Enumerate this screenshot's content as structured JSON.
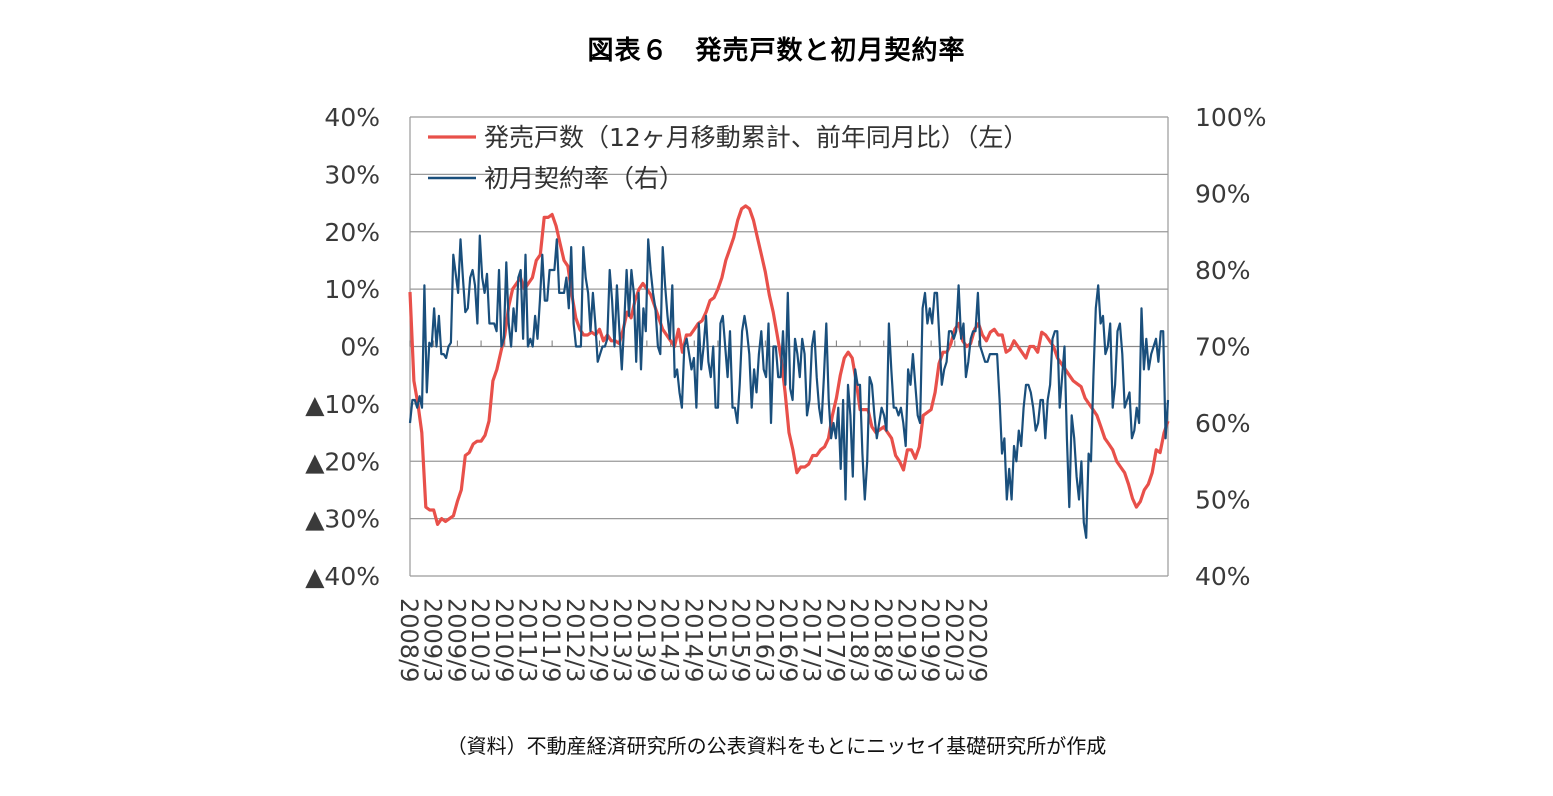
{
  "title": "図表６　発売戸数と初月契約率",
  "source": "（資料）不動産経済研究所の公表資料をもとにニッセイ基礎研究所が作成",
  "chart_data": {
    "type": "line",
    "start": "2008/9",
    "x_tick_labels": [
      "2008/9",
      "2009/3",
      "2009/9",
      "2010/3",
      "2010/9",
      "2011/3",
      "2011/9",
      "2012/3",
      "2012/9",
      "2013/3",
      "2013/9",
      "2014/3",
      "2014/9",
      "2015/3",
      "2015/9",
      "2016/3",
      "2016/9",
      "2017/3",
      "2017/9",
      "2018/3",
      "2018/9",
      "2019/3",
      "2019/9",
      "2020/3",
      "2020/9"
    ],
    "y_left": {
      "min": -40,
      "max": 40,
      "step": 10,
      "tick_labels": [
        "40%",
        "30%",
        "20%",
        "10%",
        "0%",
        "▲10%",
        "▲20%",
        "▲30%",
        "▲40%"
      ]
    },
    "y_right": {
      "min": 40,
      "max": 100,
      "step": 10,
      "tick_labels": [
        "100%",
        "90%",
        "80%",
        "70%",
        "60%",
        "50%",
        "40%"
      ]
    },
    "grid": "horizontal",
    "legend_position": "top-left",
    "series": [
      {
        "name": "発売戸数（12ヶ月移動累計、前年同月比）（左）",
        "axis": "left",
        "color": "#e8504a",
        "values": [
          9.5,
          -6,
          -10,
          -15,
          -28,
          -28.5,
          -28.5,
          -31,
          -30,
          -30.5,
          -30,
          -29.5,
          -27,
          -25,
          -19,
          -18.5,
          -17,
          -16.5,
          -16.5,
          -15.5,
          -13,
          -6,
          -4,
          -1,
          2,
          7,
          10,
          11,
          12,
          10,
          11,
          12,
          15,
          16,
          22.5,
          22.5,
          23,
          21,
          18,
          15,
          14,
          9,
          5,
          3,
          2,
          2,
          2.5,
          2,
          3,
          1,
          2,
          1,
          1,
          0.5,
          3,
          6,
          5,
          8,
          10,
          11,
          10,
          9,
          7,
          5,
          3,
          2,
          1,
          0,
          3,
          -1,
          2,
          2,
          3,
          4,
          4.5,
          6,
          8,
          8.5,
          10,
          12,
          15,
          17,
          19,
          22,
          24,
          24.5,
          24,
          22,
          19,
          16,
          13,
          9,
          6,
          2,
          -2,
          -8,
          -15,
          -18,
          -22,
          -21,
          -21,
          -20.5,
          -19,
          -19,
          -18,
          -17.5,
          -16,
          -12,
          -9,
          -5,
          -2,
          -1,
          -2,
          -6,
          -11,
          -11,
          -11,
          -14,
          -15,
          -14.5,
          -14,
          -15,
          -16,
          -19,
          -20,
          -21.5,
          -18,
          -18,
          -19.5,
          -17.5,
          -12,
          -11.5,
          -11,
          -8,
          -3,
          -1,
          -1,
          0.5,
          3,
          4,
          1,
          0,
          0.5,
          3,
          4,
          2,
          1,
          2.5,
          3,
          2,
          2,
          -1,
          -0.5,
          1,
          0,
          -1,
          -2,
          0,
          0,
          -1,
          2.5,
          2,
          1,
          0,
          -2,
          -3,
          -4,
          -5,
          -6,
          -6.5,
          -7,
          -9,
          -10,
          -11,
          -12,
          -14,
          -16,
          -17,
          -18,
          -20,
          -21,
          -22,
          -24,
          -26.5,
          -28,
          -27,
          -25,
          -24,
          -22,
          -18,
          -18.5,
          -15,
          -13
        ]
      },
      {
        "name": "初月契約率（右）",
        "axis": "right",
        "color": "#1a4f7c",
        "values": [
          60,
          63,
          63,
          62,
          63.5,
          62,
          78,
          64,
          70.5,
          70,
          75,
          70,
          74,
          69,
          69,
          68.5,
          70,
          70.5,
          82,
          79.5,
          77,
          84,
          79,
          74.5,
          75,
          79,
          80,
          78,
          73,
          84.5,
          79,
          77,
          79.5,
          73,
          73,
          73,
          72,
          80,
          70,
          71,
          81,
          73,
          70,
          75,
          72,
          79,
          80,
          71,
          82,
          70,
          71,
          70,
          74,
          71,
          76,
          82,
          76,
          76,
          80,
          80,
          80,
          84,
          77,
          77,
          77,
          79,
          75,
          83,
          73,
          70,
          70,
          70,
          83,
          79,
          77,
          72,
          77,
          73,
          68,
          69,
          70,
          70,
          71,
          80,
          76,
          70,
          78,
          72,
          67,
          73,
          80,
          74,
          80,
          77,
          68,
          77,
          67,
          75,
          72,
          84,
          80,
          77,
          75,
          70,
          69,
          83,
          78,
          74,
          71,
          78,
          66,
          67,
          64,
          62,
          70,
          71,
          69,
          67,
          68.5,
          62,
          73,
          67,
          70,
          74,
          68,
          66,
          70,
          62,
          62,
          73,
          74,
          70,
          66,
          72,
          62,
          62,
          60,
          65,
          72,
          74,
          72,
          69,
          62,
          67,
          64,
          69,
          72,
          67,
          66,
          73,
          60,
          70,
          70,
          66,
          66,
          72,
          65,
          77,
          64.5,
          63,
          71,
          69,
          66,
          71,
          69,
          61,
          63,
          70,
          72,
          66,
          62,
          60,
          66,
          73,
          63,
          58,
          60,
          58,
          62,
          54,
          63,
          50,
          65,
          61,
          53,
          67,
          65,
          65,
          56,
          50,
          55,
          66,
          65,
          61,
          58,
          60,
          62,
          61,
          59,
          73,
          67,
          62,
          62,
          61,
          62,
          60,
          57,
          67,
          65,
          69,
          65,
          61,
          60,
          75,
          77,
          73,
          75,
          73,
          77,
          77,
          71,
          65,
          67,
          68,
          72,
          72,
          71,
          72,
          78,
          71,
          73,
          66,
          68,
          71,
          72,
          72,
          77,
          70,
          69,
          68,
          68,
          69,
          69,
          69,
          69,
          63,
          56,
          58,
          50,
          54,
          50,
          57,
          55,
          59,
          57,
          62,
          65,
          65,
          64,
          62,
          59,
          60,
          63,
          63,
          58,
          63,
          65,
          71,
          72,
          72,
          62,
          66,
          70,
          58,
          49,
          61,
          58,
          53,
          50,
          55,
          47,
          45,
          56,
          55,
          66,
          75,
          78,
          73,
          74,
          69,
          70,
          73,
          62,
          65,
          72,
          73,
          69,
          62,
          63,
          64,
          58,
          59,
          62,
          60,
          75,
          67,
          71,
          67,
          69,
          70,
          71,
          68,
          72,
          72,
          58,
          63
        ]
      }
    ]
  }
}
